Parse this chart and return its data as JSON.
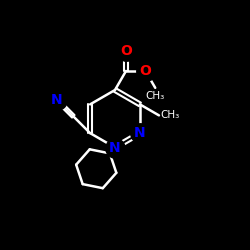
{
  "background_color": "#000000",
  "bond_color": "#ffffff",
  "N_color": "#0000ff",
  "O_color": "#ff0000",
  "figsize": [
    2.5,
    2.5
  ],
  "dpi": 100,
  "xlim": [
    0,
    10
  ],
  "ylim": [
    0,
    10
  ]
}
